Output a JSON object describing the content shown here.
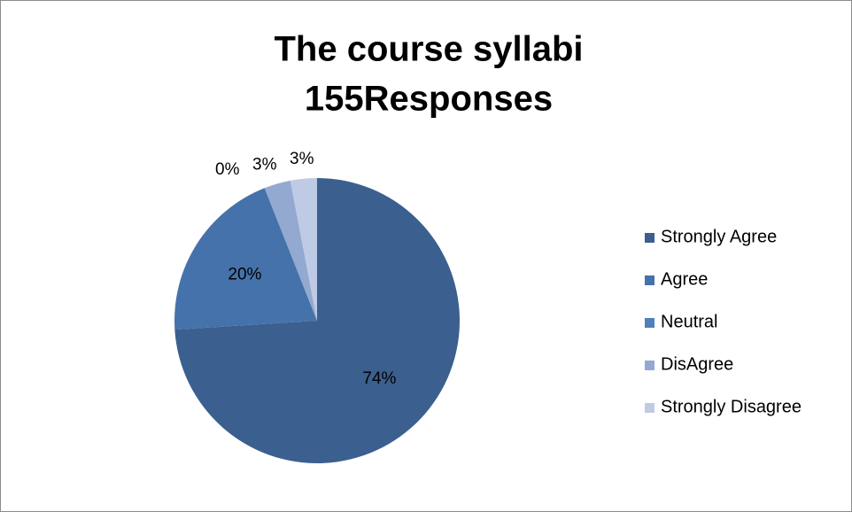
{
  "chart_data": {
    "type": "pie",
    "title_lines": [
      "The course  syllabi",
      "155Responses"
    ],
    "categories": [
      "Strongly Agree",
      "Agree",
      "Neutral",
      "DisAgree",
      "Strongly Disagree"
    ],
    "values": [
      74,
      20,
      0,
      3,
      3
    ],
    "value_labels": [
      "74%",
      "20%",
      "0%",
      "3%",
      "3%"
    ],
    "colors": [
      "#3b5f8e",
      "#4572aa",
      "#4f80bd",
      "#94a9d0",
      "#bfcbe4"
    ],
    "legend": "right"
  }
}
